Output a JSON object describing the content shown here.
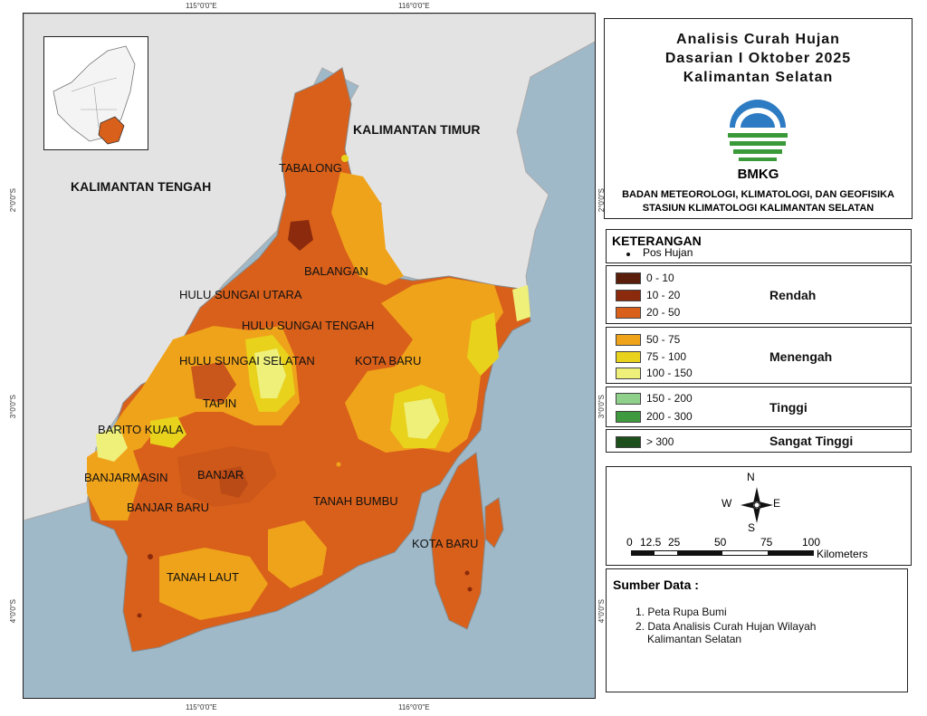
{
  "coords": {
    "lon_115": "115°0'0\"E",
    "lon_116": "116°0'0\"E",
    "lat_2": "2°0'0\"S",
    "lat_3": "3°0'0\"S",
    "lat_4": "4°0'0\"S"
  },
  "map": {
    "province_labels": {
      "kalteng": "KALIMANTAN TENGAH",
      "kaltim": "KALIMANTAN TIMUR"
    },
    "regions": {
      "tabalong": "TABALONG",
      "balangan": "BALANGAN",
      "hsu": "HULU SUNGAI UTARA",
      "hst": "HULU SUNGAI TENGAH",
      "hss": "HULU SUNGAI SELATAN",
      "kotabaru1": "KOTA BARU",
      "tapin": "TAPIN",
      "baritokuala": "BARITO KUALA",
      "banjarmasin": "BANJARMASIN",
      "banjar": "BANJAR",
      "banjarbaru": "BANJAR BARU",
      "tanahbumbu": "TANAH BUMBU",
      "kotabaru2": "KOTA BARU",
      "tanahlaut": "TANAH LAUT"
    },
    "colors": {
      "sea": "#9fb9c9",
      "land_outside": "#e3e3e3",
      "c_0_10": "#5a1e0a",
      "c_10_20": "#8b2a0c",
      "c_20_50": "#d9601a",
      "c_50_75": "#efa31a",
      "c_75_100": "#e8d21c",
      "c_100_150": "#eef07a",
      "c_150_200": "#8fd18a",
      "c_200_300": "#3f9a3f",
      "c_300": "#1d4f1d"
    }
  },
  "title": {
    "line1": "Analisis Curah Hujan",
    "line2": "Dasarian I Oktober 2025",
    "line3": "Kalimantan Selatan",
    "agency_short": "BMKG",
    "agency_full": "BADAN METEOROLOGI, KLIMATOLOGI, DAN GEOFISIKA",
    "station": "STASIUN KLIMATOLOGI KALIMANTAN SELATAN"
  },
  "legend": {
    "heading": "KETERANGAN",
    "pos_hujan": "Pos Hujan",
    "classes": [
      {
        "label": "0 - 10",
        "color": "#5a1e0a"
      },
      {
        "label": "10 - 20",
        "color": "#8b2a0c"
      },
      {
        "label": "20 - 50",
        "color": "#d9601a"
      },
      {
        "label": "50 - 75",
        "color": "#efa31a"
      },
      {
        "label": "75 - 100",
        "color": "#e8d21c"
      },
      {
        "label": "100 - 150",
        "color": "#eef07a"
      },
      {
        "label": "150 - 200",
        "color": "#8fd18a"
      },
      {
        "label": "200 - 300",
        "color": "#3f9a3f"
      },
      {
        "label": "> 300",
        "color": "#1d4f1d"
      }
    ],
    "categories": {
      "rendah": "Rendah",
      "menengah": "Menengah",
      "tinggi": "Tinggi",
      "sangat_tinggi": "Sangat Tinggi"
    }
  },
  "scale": {
    "north": "N",
    "south": "S",
    "east": "E",
    "west": "W",
    "ticks": [
      "0",
      "12.5",
      "25",
      "50",
      "75",
      "100"
    ],
    "unit": "Kilometers"
  },
  "sources": {
    "heading": "Sumber Data :",
    "item1": "1. Peta Rupa Bumi",
    "item2a": "2. Data Analisis Curah Hujan Wilayah",
    "item2b": "Kalimantan Selatan"
  }
}
